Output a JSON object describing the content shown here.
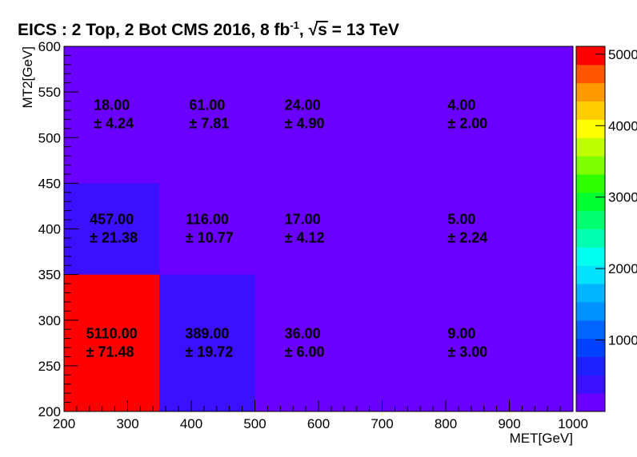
{
  "chart_data": {
    "type": "heatmap",
    "title": [
      "EICS : 2 Top, 2 Bot  CMS 2016, 8 fb",
      "-1",
      ",  ",
      "√",
      "s",
      " = 13 TeV"
    ],
    "x_label": "MET[GeV]",
    "y_label": "MT2[GeV]",
    "x_edges": [
      200,
      350,
      500,
      650,
      1000
    ],
    "y_edges": [
      200,
      350,
      450,
      600
    ],
    "z": [
      [
        5110,
        389,
        36,
        9
      ],
      [
        457,
        116,
        17,
        5
      ],
      [
        18,
        61,
        24,
        4
      ]
    ],
    "z_labels": [
      [
        "5110.00",
        "389.00",
        "36.00",
        "9.00"
      ],
      [
        "457.00",
        "116.00",
        "17.00",
        "5.00"
      ],
      [
        "18.00",
        "61.00",
        "24.00",
        "4.00"
      ]
    ],
    "z_errors": [
      [
        71.48,
        19.72,
        6.0,
        3.0
      ],
      [
        21.38,
        10.77,
        4.12,
        2.24
      ],
      [
        4.24,
        7.81,
        4.9,
        2.0
      ]
    ],
    "z_error_labels": [
      [
        "± 71.48",
        "± 19.72",
        "± 6.00",
        "± 3.00"
      ],
      [
        "± 21.38",
        "± 10.77",
        "± 4.12",
        "± 2.24"
      ],
      [
        "± 4.24",
        "± 7.81",
        "± 4.90",
        "± 2.00"
      ]
    ],
    "xlim": [
      200,
      1000
    ],
    "xticks": [
      200,
      300,
      400,
      500,
      600,
      700,
      800,
      900,
      1000
    ],
    "ylim": [
      200,
      600
    ],
    "yticks": [
      200,
      250,
      300,
      350,
      400,
      450,
      500,
      550,
      600
    ],
    "zlim": [
      0,
      5110
    ],
    "zticks": [
      1000,
      2000,
      3000,
      4000,
      5000
    ],
    "palette": [
      "#6a00ff",
      "#3a10ff",
      "#1f20ff",
      "#0040ff",
      "#0066ff",
      "#0090ff",
      "#00b4ff",
      "#00e0ff",
      "#00ffee",
      "#00ffb0",
      "#00ff70",
      "#00ff30",
      "#30ff00",
      "#80ff00",
      "#c0ff00",
      "#ffff00",
      "#ffcc00",
      "#ff9900",
      "#ff5500",
      "#ff0000"
    ]
  }
}
